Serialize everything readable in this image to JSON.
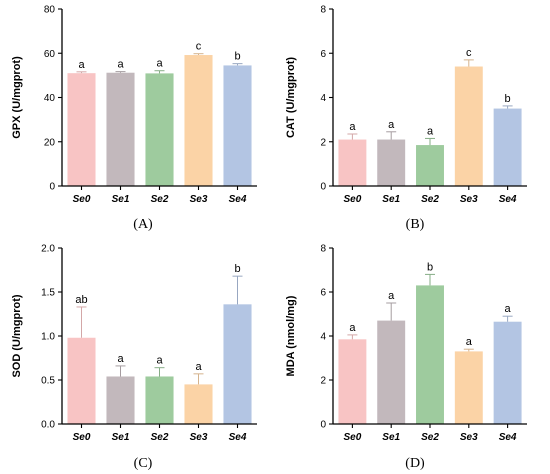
{
  "chart_data": [
    {
      "type": "bar",
      "panel_label": "(A)",
      "ylabel": "GPX (U/mgprot)",
      "ylim": [
        0,
        80
      ],
      "yticks": [
        0,
        20,
        40,
        60,
        80
      ],
      "categories": [
        "Se0",
        "Se1",
        "Se2",
        "Se3",
        "Se4"
      ],
      "values": [
        51,
        51.2,
        50.9,
        59.2,
        54.5
      ],
      "errors": [
        0.6,
        0.5,
        1.2,
        0.6,
        0.8
      ],
      "labels": [
        "a",
        "a",
        "a",
        "c",
        "b"
      ],
      "colors": [
        "#F8C4C4",
        "#C2B8BC",
        "#9ECB9E",
        "#FBD3A6",
        "#B3C5E3"
      ]
    },
    {
      "type": "bar",
      "panel_label": "(B)",
      "ylabel": "CAT (U/mgprot)",
      "ylim": [
        0,
        8
      ],
      "yticks": [
        0,
        2,
        4,
        6,
        8
      ],
      "categories": [
        "Se0",
        "Se1",
        "Se2",
        "Se3",
        "Se4"
      ],
      "values": [
        2.1,
        2.1,
        1.85,
        5.4,
        3.5
      ],
      "errors": [
        0.25,
        0.35,
        0.3,
        0.3,
        0.12
      ],
      "labels": [
        "a",
        "a",
        "a",
        "c",
        "b"
      ],
      "colors": [
        "#F8C4C4",
        "#C2B8BC",
        "#9ECB9E",
        "#FBD3A6",
        "#B3C5E3"
      ]
    },
    {
      "type": "bar",
      "panel_label": "(C)",
      "ylabel": "SOD (U/mgprot)",
      "ylim": [
        0,
        2.0
      ],
      "yticks": [
        "0.0",
        "0.5",
        "1.0",
        "1.5",
        "2.0"
      ],
      "categories": [
        "Se0",
        "Se1",
        "Se2",
        "Se3",
        "Se4"
      ],
      "values": [
        0.98,
        0.54,
        0.54,
        0.45,
        1.36
      ],
      "errors": [
        0.35,
        0.12,
        0.1,
        0.12,
        0.32
      ],
      "labels": [
        "ab",
        "a",
        "a",
        "a",
        "b"
      ],
      "colors": [
        "#F8C4C4",
        "#C2B8BC",
        "#9ECB9E",
        "#FBD3A6",
        "#B3C5E3"
      ]
    },
    {
      "type": "bar",
      "panel_label": "(D)",
      "ylabel": "MDA (nmol/mg)",
      "ylim": [
        0,
        8
      ],
      "yticks": [
        0,
        2,
        4,
        6,
        8
      ],
      "categories": [
        "Se0",
        "Se1",
        "Se2",
        "Se3",
        "Se4"
      ],
      "values": [
        3.85,
        4.7,
        6.3,
        3.3,
        4.65
      ],
      "errors": [
        0.2,
        0.8,
        0.5,
        0.1,
        0.25
      ],
      "labels": [
        "a",
        "a",
        "b",
        "a",
        "a"
      ],
      "colors": [
        "#F8C4C4",
        "#C2B8BC",
        "#9ECB9E",
        "#FBD3A6",
        "#B3C5E3"
      ]
    }
  ]
}
